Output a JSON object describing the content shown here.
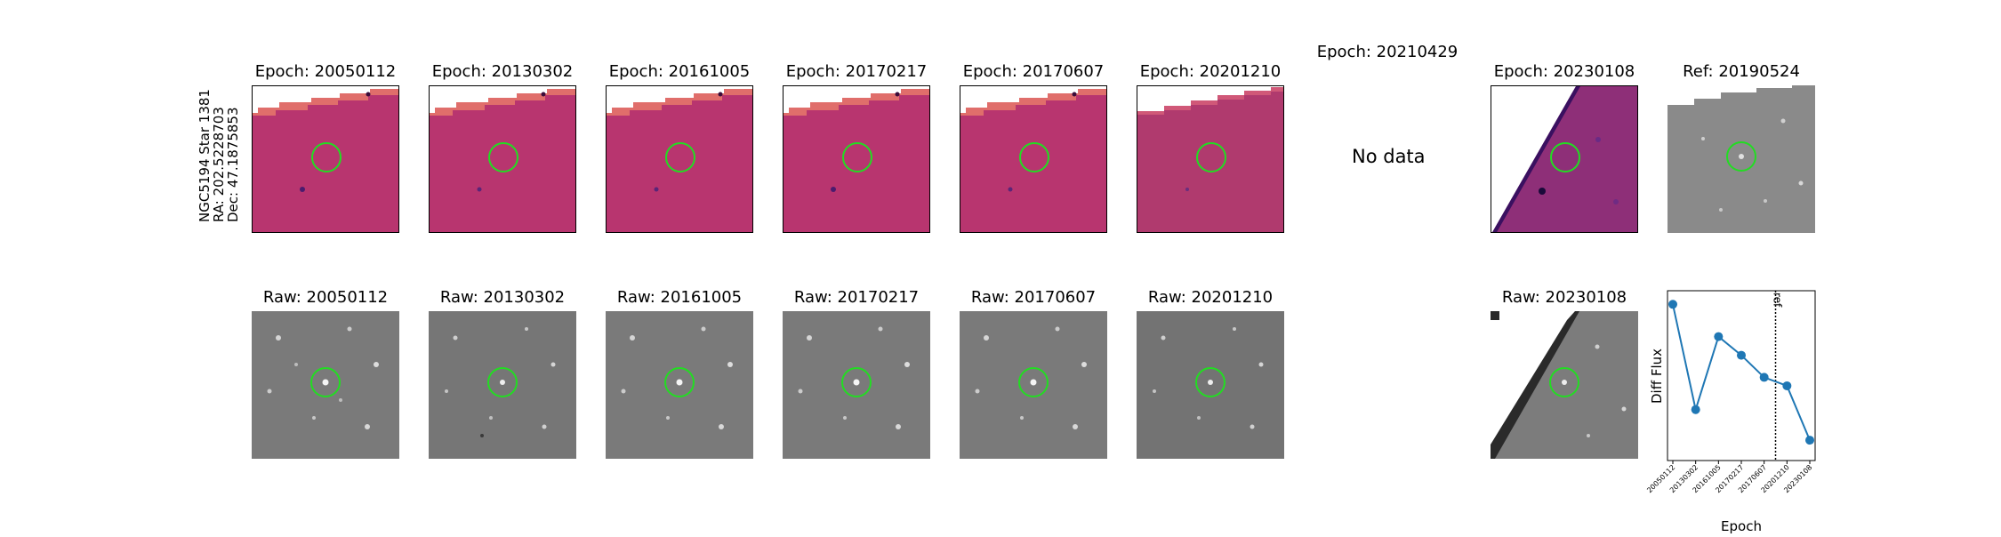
{
  "star_label": {
    "line1": "NGC5194 Star 1381",
    "line2": "RA: 202.5228703",
    "line3": "Dec: 47.1875853"
  },
  "diff_panels": [
    {
      "title": "Epoch: 20050112"
    },
    {
      "title": "Epoch: 20130302"
    },
    {
      "title": "Epoch: 20161005"
    },
    {
      "title": "Epoch: 20170217"
    },
    {
      "title": "Epoch: 20170607"
    },
    {
      "title": "Epoch: 20201210"
    },
    {
      "title": "Epoch: 20210429",
      "no_data": "No data"
    },
    {
      "title": "Epoch: 20230108"
    },
    {
      "title": "Ref: 20190524"
    }
  ],
  "raw_panels": [
    {
      "title": "Raw: 20050112"
    },
    {
      "title": "Raw: 20130302"
    },
    {
      "title": "Raw: 20161005"
    },
    {
      "title": "Raw: 20170217"
    },
    {
      "title": "Raw: 20170607"
    },
    {
      "title": "Raw: 20201210"
    },
    {
      "title": "Raw: 20230108"
    }
  ],
  "colors": {
    "aperture": "#22dd22",
    "diff_bg": "#b8356f",
    "line": "#1f77b4"
  },
  "chart_data": {
    "type": "line",
    "xlabel": "Epoch",
    "ylabel": "Diff Flux",
    "categories": [
      "20050112",
      "20130302",
      "20161005",
      "20170217",
      "20170607",
      "20201210",
      "20230108"
    ],
    "values": [
      0.92,
      0.3,
      0.73,
      0.62,
      0.49,
      0.44,
      0.12
    ],
    "ylim": [
      0,
      1
    ],
    "ref_line": {
      "position": 4.5,
      "label": "ref"
    },
    "legend": "none",
    "grid": false
  }
}
